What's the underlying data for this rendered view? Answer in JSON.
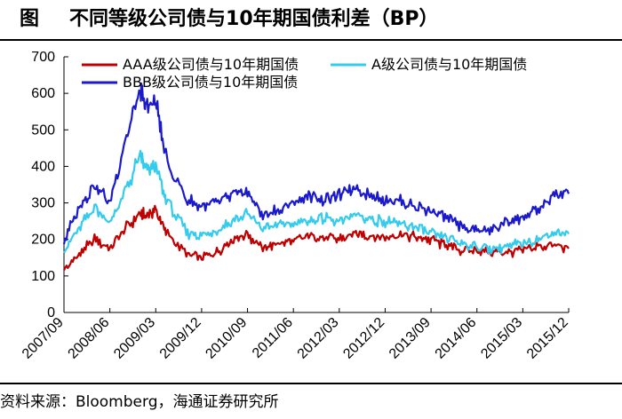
{
  "header": {
    "figure_label": "图",
    "title": "不同等级公司债与10年期国债利差（BP）"
  },
  "footer": {
    "source": "资料来源：Bloomberg，海通证券研究所"
  },
  "chart_data": {
    "type": "line",
    "title": "不同等级公司债与10年期国债利差（BP）",
    "xlabel": "",
    "ylabel": "",
    "ylim": [
      0,
      700
    ],
    "yticks": [
      0,
      100,
      200,
      300,
      400,
      500,
      600,
      700
    ],
    "xlim": [
      "2007/09",
      "2015/12"
    ],
    "xticks": [
      "2007/09",
      "2008/06",
      "2009/03",
      "2009/12",
      "2010/09",
      "2011/06",
      "2012/03",
      "2012/12",
      "2013/09",
      "2014/06",
      "2015/03",
      "2015/12"
    ],
    "grid": false,
    "legend_position": "top",
    "x": [
      "2007/09",
      "2007/12",
      "2008/03",
      "2008/06",
      "2008/09",
      "2008/12",
      "2009/01",
      "2009/03",
      "2009/05",
      "2009/09",
      "2009/12",
      "2010/03",
      "2010/06",
      "2010/09",
      "2010/12",
      "2011/03",
      "2011/06",
      "2011/09",
      "2011/12",
      "2012/03",
      "2012/06",
      "2012/09",
      "2012/12",
      "2013/03",
      "2013/06",
      "2013/09",
      "2013/12",
      "2014/03",
      "2014/06",
      "2014/09",
      "2014/12",
      "2015/03",
      "2015/06",
      "2015/09",
      "2015/12"
    ],
    "series": [
      {
        "name": "AAA级公司债与10年期国债",
        "color": "#c00000",
        "values": [
          115,
          160,
          200,
          175,
          230,
          270,
          265,
          280,
          220,
          160,
          150,
          165,
          200,
          215,
          175,
          190,
          195,
          210,
          205,
          200,
          215,
          210,
          205,
          215,
          205,
          200,
          185,
          170,
          170,
          165,
          165,
          170,
          180,
          185,
          175
        ]
      },
      {
        "name": "A级公司债与10年期国债",
        "color": "#33ccee",
        "values": [
          170,
          230,
          290,
          245,
          330,
          430,
          390,
          400,
          310,
          220,
          210,
          225,
          250,
          270,
          230,
          240,
          245,
          250,
          260,
          245,
          270,
          255,
          250,
          240,
          235,
          215,
          205,
          190,
          180,
          175,
          180,
          190,
          200,
          220,
          215
        ]
      },
      {
        "name": "BBB级公司债与10年期国债",
        "color": "#1a1acc",
        "values": [
          195,
          290,
          350,
          300,
          470,
          610,
          560,
          580,
          420,
          310,
          290,
          300,
          320,
          330,
          265,
          280,
          300,
          320,
          310,
          320,
          345,
          320,
          310,
          305,
          290,
          280,
          260,
          235,
          225,
          225,
          250,
          260,
          280,
          320,
          325
        ]
      }
    ]
  }
}
